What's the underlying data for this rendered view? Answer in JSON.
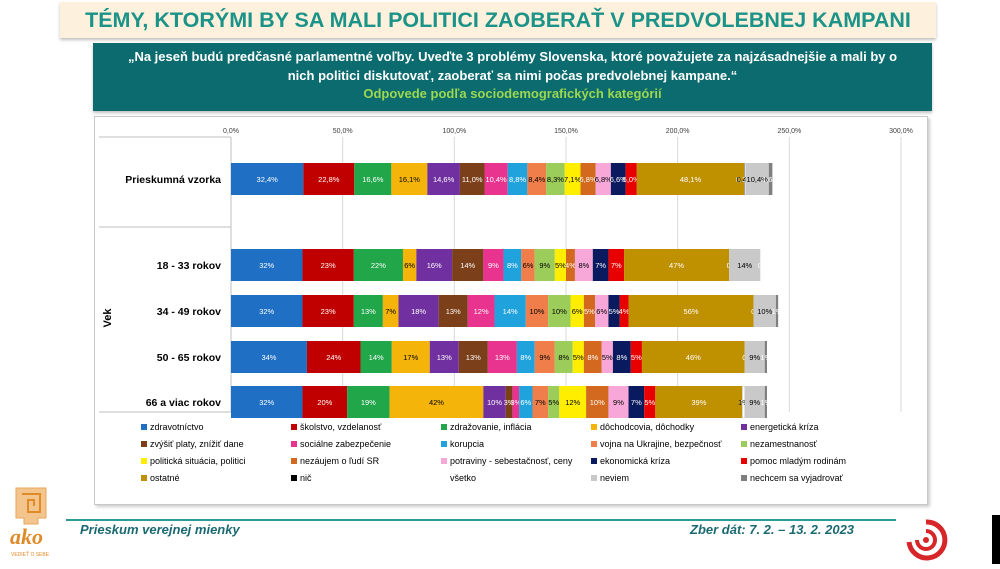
{
  "title": "TÉMY, KTORÝMI BY SA MALI POLITICI ZAOBERAŤ V PREDVOLEBNEJ KAMPANI",
  "question": "„Na jeseň budú predčasné parlamentné voľby. Uveďte 3 problémy Slovenska, ktoré považujete za najzásadnejšie a mali by o nich politici diskutovať, zaoberať sa nimi počas predvolebnej kampane.“",
  "question_sub": "Odpovede podľa sociodemografických kategórií",
  "footer": {
    "left": "Prieskum verejnej mienky",
    "right": "Zber dát: 7. 2. – 13. 2. 2023"
  },
  "logo": {
    "name": "ako",
    "tagline": "VEDIEŤ O SEBE"
  },
  "chart_data": {
    "type": "bar",
    "orientation": "horizontal",
    "stacked": true,
    "xlim": [
      0,
      300
    ],
    "xticks": [
      "0,0%",
      "50,0%",
      "100,0%",
      "150,0%",
      "200,0%",
      "250,0%",
      "300,0%"
    ],
    "group_label": "Vek",
    "categories": [
      "Prieskumná vzorka",
      "18 - 33 rokov",
      "34 - 49 rokov",
      "50 - 65 rokov",
      "66 a viac rokov"
    ],
    "series": [
      {
        "name": "zdravotníctvo",
        "color": "#1f6fc4",
        "values": [
          32.4,
          32,
          32,
          34,
          32
        ],
        "labels": [
          "32,4%",
          "32%",
          "32%",
          "34%",
          "32%"
        ]
      },
      {
        "name": "školstvo, vzdelanosť",
        "color": "#c00000",
        "values": [
          22.8,
          23,
          23,
          24,
          20
        ],
        "labels": [
          "22,8%",
          "23%",
          "23%",
          "24%",
          "20%"
        ]
      },
      {
        "name": "zdražovanie, inflácia",
        "color": "#21a64a",
        "values": [
          16.6,
          22,
          13,
          14,
          19
        ],
        "labels": [
          "16,6%",
          "22%",
          "13%",
          "14%",
          "19%"
        ]
      },
      {
        "name": "dôchodcovia, dôchodky",
        "color": "#f5b40a",
        "values": [
          16.1,
          6,
          7,
          17,
          42
        ],
        "labels": [
          "16,1%",
          "6%",
          "7%",
          "17%",
          "42%"
        ]
      },
      {
        "name": "energetická kríza",
        "color": "#7030a0",
        "values": [
          14.6,
          16,
          18,
          13,
          10
        ],
        "labels": [
          "14,6%",
          "16%",
          "18%",
          "13%",
          "10%"
        ]
      },
      {
        "name": "zvýšiť platy, znížiť dane",
        "color": "#7b3f1a",
        "values": [
          11.0,
          14,
          13,
          13,
          3
        ],
        "labels": [
          "11,0%",
          "14%",
          "13%",
          "13%",
          "3%"
        ]
      },
      {
        "name": "sociálne zabezpečenie",
        "color": "#e8338f",
        "values": [
          10.4,
          9,
          12,
          13,
          3
        ],
        "labels": [
          "10,4%",
          "9%",
          "12%",
          "13%",
          "3%"
        ]
      },
      {
        "name": "korupcia",
        "color": "#20a3dc",
        "values": [
          8.8,
          8,
          14,
          8,
          6
        ],
        "labels": [
          "8,8%",
          "8%",
          "14%",
          "8%",
          "6%"
        ]
      },
      {
        "name": "vojna na Ukrajine, bezpečnosť",
        "color": "#f07e4a",
        "values": [
          8.4,
          6,
          10,
          9,
          7
        ],
        "labels": [
          "8,4%",
          "6%",
          "10%",
          "9%",
          "7%"
        ]
      },
      {
        "name": "nezamestnanosť",
        "color": "#9ccc5a",
        "values": [
          8.3,
          9,
          10,
          8,
          5
        ],
        "labels": [
          "8,3%",
          "9%",
          "10%",
          "8%",
          "5%"
        ]
      },
      {
        "name": "politická situácia, politici",
        "color": "#ffee00",
        "values": [
          7.1,
          5,
          6,
          5,
          12
        ],
        "labels": [
          "7,1%",
          "5%",
          "6%",
          "5%",
          "12%"
        ]
      },
      {
        "name": "nezáujem o ľudí SR",
        "color": "#d2691e",
        "values": [
          6.8,
          4,
          5,
          8,
          10
        ],
        "labels": [
          "6,8%",
          "4%",
          "5%",
          "8%",
          "10%"
        ]
      },
      {
        "name": "potraviny - sebestačnosť, ceny",
        "color": "#f7a8d8",
        "values": [
          6.8,
          8,
          6,
          5,
          9
        ],
        "labels": [
          "6,8%",
          "8%",
          "6%",
          "5%",
          "9%"
        ]
      },
      {
        "name": "ekonomická kríza",
        "color": "#0a1a5e",
        "values": [
          6.6,
          7,
          5,
          8,
          7
        ],
        "labels": [
          "6,6%",
          "7%",
          "5%",
          "8%",
          "7%"
        ]
      },
      {
        "name": "pomoc mladým rodinám",
        "color": "#e80000",
        "values": [
          5.0,
          7,
          4,
          5,
          5
        ],
        "labels": [
          "5,0%",
          "7%",
          "4%",
          "5%",
          "5%"
        ]
      },
      {
        "name": "ostatné",
        "color": "#bf9000",
        "values": [
          48.1,
          47,
          56,
          46,
          39
        ],
        "labels": [
          "48,1%",
          "47%",
          "56%",
          "46%",
          "39%"
        ]
      },
      {
        "name": "nič",
        "color": "#000000",
        "values": [
          0.2,
          0,
          0,
          0,
          0
        ],
        "labels": [
          "0,2%",
          "0%",
          "0%",
          "0%",
          "0%"
        ]
      },
      {
        "name": "všetko",
        "color": "#ffffff",
        "values": [
          0.4,
          0,
          0,
          0,
          1
        ],
        "labels": [
          "0,4%",
          "",
          "",
          "",
          "1%"
        ]
      },
      {
        "name": "neviem",
        "color": "#c9c9c9",
        "values": [
          10.4,
          14,
          10,
          9,
          9
        ],
        "labels": [
          "10,4%",
          "14%",
          "10%",
          "9%",
          "9%"
        ]
      },
      {
        "name": "nechcem sa vyjadrovať",
        "color": "#7f7f7f",
        "values": [
          1.6,
          0,
          1,
          1,
          1
        ],
        "labels": [
          "1,6%",
          "0%",
          "1%",
          "1%",
          "1%"
        ]
      }
    ]
  }
}
